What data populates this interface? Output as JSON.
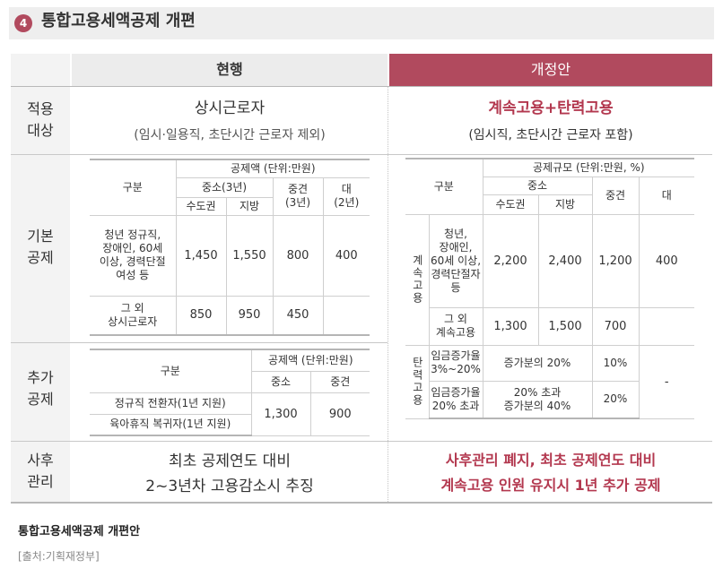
{
  "header": {
    "badge": "4",
    "title": "통합고용세액공제 개편"
  },
  "columns": {
    "current": "현행",
    "reform": "개정안"
  },
  "colors": {
    "accent": "#b3384f",
    "reform_header_bg": "#b14a5e",
    "current_header_bg": "#ececec",
    "label_bg": "#f3f3f3"
  },
  "rows": {
    "target": {
      "label1": "적용",
      "label2": "대상",
      "current_main": "상시근로자",
      "current_sub": "(임시·일용직, 초단시간 근로자 제외)",
      "reform_main": "계속고용+탄력고용",
      "reform_sub": "(임시직, 초단시간 근로자 포함)"
    },
    "basic": {
      "label1": "기본",
      "label2": "공제"
    },
    "additional": {
      "label1": "추가",
      "label2": "공제"
    },
    "aftercare": {
      "label1": "사후",
      "label2": "관리",
      "current_line1": "최초 공제연도 대비",
      "current_line2": "2~3년차 고용감소시 추징",
      "reform_line1": "사후관리 폐지, 최초 공제연도 대비",
      "reform_line2": "계속고용 인원 유지시 1년 추가 공제"
    }
  },
  "basic_current": {
    "gubun": "구분",
    "amount_header": "공제액 (단위:만원)",
    "sme": "중소(3년)",
    "mid": "중견",
    "mid_years": "(3년)",
    "large": "대",
    "large_years": "(2년)",
    "capital": "수도권",
    "local": "지방",
    "r1_l1": "청년 정규직,",
    "r1_l2": "장애인, 60세",
    "r1_l3": "이상, 경력단절",
    "r1_l4": "여성 등",
    "r1_capital": "1,450",
    "r1_local": "1,550",
    "r1_mid": "800",
    "r1_large": "400",
    "r2_l1": "그 외",
    "r2_l2": "상시근로자",
    "r2_capital": "850",
    "r2_local": "950",
    "r2_mid": "450",
    "r2_large": ""
  },
  "basic_reform": {
    "gubun": "구분",
    "scale_header": "공제규모 (단위:만원, %)",
    "sme": "중소",
    "mid": "중견",
    "large": "대",
    "capital": "수도권",
    "local": "지방",
    "group1": "계속고용",
    "r1_l1": "청년,",
    "r1_l2": "장애인,",
    "r1_l3": "60세 이상,",
    "r1_l4": "경력단절자",
    "r1_l5": "등",
    "r1_capital": "2,200",
    "r1_local": "2,400",
    "r1_mid": "1,200",
    "r1_large": "400",
    "r2_l1": "그 외",
    "r2_l2": "계속고용",
    "r2_capital": "1,300",
    "r2_local": "1,500",
    "r2_mid": "700",
    "group2": "탄력고용",
    "r3_l1": "임금증가율",
    "r3_l2": "3%~20%",
    "r3_sme": "증가분의 20%",
    "r3_mid": "10%",
    "r4_l1": "임금증가율",
    "r4_l2": "20% 초과",
    "r4_sme_l1": "20% 초과",
    "r4_sme_l2": "증가분의 40%",
    "r4_mid": "20%",
    "large_dash": "-"
  },
  "additional_current": {
    "gubun": "구분",
    "amount_header": "공제액 (단위:만원)",
    "sme": "중소",
    "mid": "중견",
    "r1": "정규직 전환자(1년 지원)",
    "r2": "육아휴직 복귀자(1년 지원)",
    "sme_val": "1,300",
    "mid_val": "900"
  },
  "caption": "통합고용세액공제 개편안",
  "source": "[출처:기획재정부]"
}
